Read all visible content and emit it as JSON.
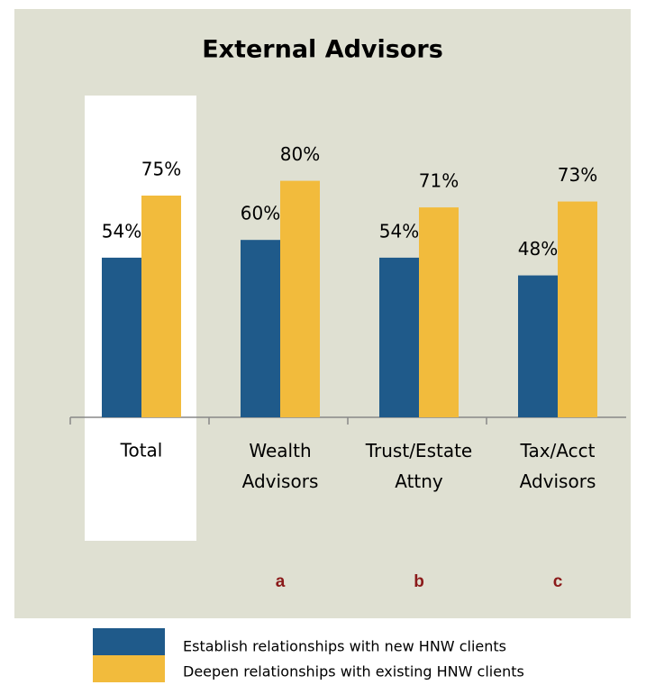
{
  "chart_data": {
    "type": "bar",
    "title": "External Advisors",
    "categories": [
      "Total",
      "Wealth Advisors",
      "Trust/Estate Attny",
      "Tax/Acct Advisors"
    ],
    "category_notes": [
      null,
      "a",
      "b",
      "c"
    ],
    "series": [
      {
        "name": "Establish relationships with new HNW clients",
        "color": "#1f5a8a",
        "values": [
          54,
          60,
          54,
          48
        ],
        "value_labels": [
          "54%",
          "60%",
          "54%",
          "48%"
        ]
      },
      {
        "name": "Deepen relationships with existing HNW clients",
        "color": "#f2bb3c",
        "values": [
          75,
          80,
          71,
          73
        ],
        "value_labels": [
          "75%",
          "80%",
          "71%",
          "73%"
        ]
      }
    ]
  }
}
